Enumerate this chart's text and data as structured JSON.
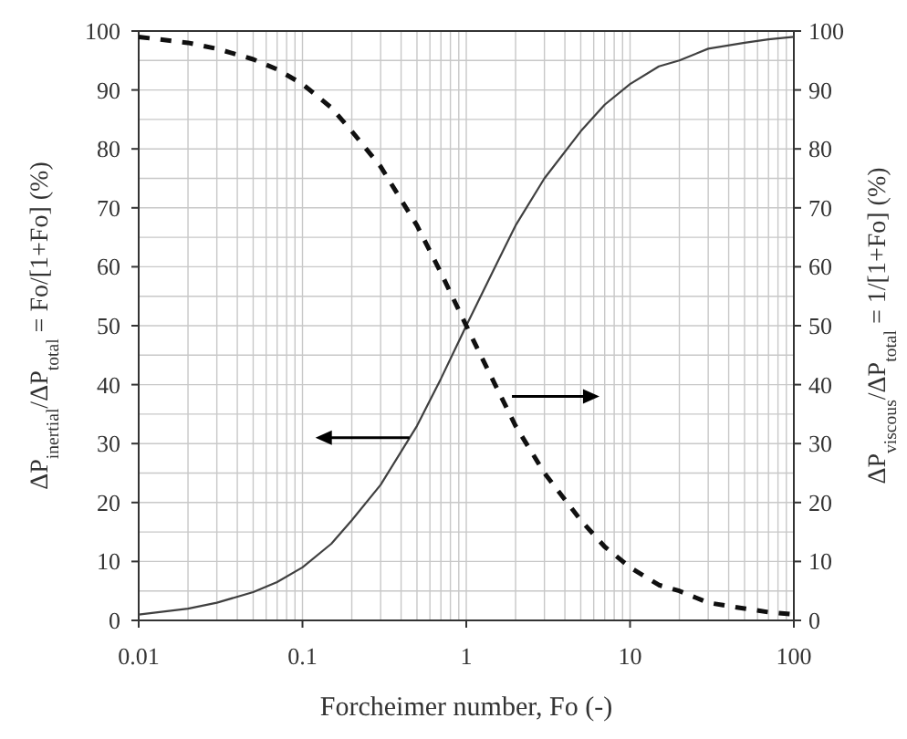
{
  "chart_data": {
    "type": "line",
    "xlabel": "Forcheimer number, Fo (-)",
    "ylabel": "ΔP$_{inertial}$/ΔP$_{total}$ = Fo/[1+Fo] (%)",
    "y2label": "ΔP$_{viscous}$/ΔP$_{total}$ = 1/[1+Fo] (%)",
    "log": "x",
    "grid": true,
    "x": [
      0.01,
      0.02,
      0.03,
      0.05,
      0.07,
      0.1,
      0.15,
      0.2,
      0.3,
      0.5,
      0.7,
      1,
      1.5,
      2,
      3,
      5,
      7,
      10,
      15,
      20,
      30,
      50,
      70,
      100
    ],
    "xlim": [
      0.01,
      100
    ],
    "xticks": [
      0.01,
      0.1,
      1,
      10,
      100
    ],
    "ylim": [
      0,
      100
    ],
    "yticks": [
      0,
      10,
      20,
      30,
      40,
      50,
      60,
      70,
      80,
      90,
      100
    ],
    "y2lim": [
      0,
      100
    ],
    "y2ticks": [
      0,
      10,
      20,
      30,
      40,
      50,
      60,
      70,
      80,
      90,
      100
    ],
    "series": [
      {
        "color": "#404040",
        "line_style": "solid",
        "values": [
          1,
          2,
          3,
          4.8,
          6.5,
          9,
          13,
          17,
          23,
          33,
          41,
          50,
          60,
          67,
          75,
          83,
          87.5,
          91,
          94,
          95,
          97,
          98,
          98.6,
          99
        ]
      },
      {
        "color": "#101010",
        "line_style": "dashed",
        "axis": "y2",
        "values": [
          99,
          98,
          97,
          95.2,
          93.5,
          91,
          87,
          83,
          77,
          67,
          59,
          50,
          40,
          33,
          25,
          17,
          12.5,
          9,
          6,
          5,
          3,
          2,
          1.4,
          1
        ]
      }
    ]
  }
}
